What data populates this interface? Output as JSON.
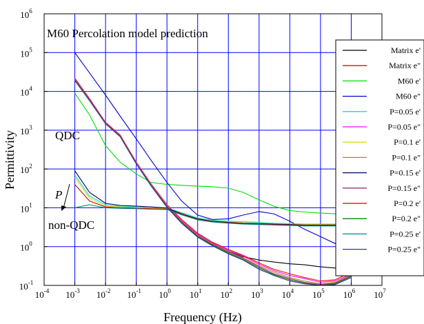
{
  "chart_data": {
    "type": "line",
    "title": "M60 Percolation model prediction",
    "xlabel": "Frequency (Hz)",
    "ylabel": "Permittivity",
    "x_scale": "log",
    "y_scale": "log",
    "xlim": [
      0.0001,
      10000000
    ],
    "ylim": [
      0.1,
      1000000
    ],
    "grid": true,
    "legend_position": "right",
    "x_ticks": [
      {
        "base": "10",
        "exp": "-4"
      },
      {
        "base": "10",
        "exp": "-3"
      },
      {
        "base": "10",
        "exp": "-2"
      },
      {
        "base": "10",
        "exp": "-1"
      },
      {
        "base": "10",
        "exp": "0"
      },
      {
        "base": "10",
        "exp": "1"
      },
      {
        "base": "10",
        "exp": "2"
      },
      {
        "base": "10",
        "exp": "3"
      },
      {
        "base": "10",
        "exp": "4"
      },
      {
        "base": "10",
        "exp": "5"
      },
      {
        "base": "10",
        "exp": "6"
      },
      {
        "base": "10",
        "exp": "7"
      }
    ],
    "y_ticks": [
      {
        "base": "10",
        "exp": "-1"
      },
      {
        "base": "10",
        "exp": "0"
      },
      {
        "base": "10",
        "exp": "1"
      },
      {
        "base": "10",
        "exp": "2"
      },
      {
        "base": "10",
        "exp": "3"
      },
      {
        "base": "10",
        "exp": "4"
      },
      {
        "base": "10",
        "exp": "5"
      },
      {
        "base": "10",
        "exp": "6"
      }
    ],
    "annotations": {
      "qdc": "QDC",
      "p": "P",
      "non_qdc": "non-QDC"
    },
    "x": [
      0.001,
      0.003,
      0.01,
      0.03,
      0.1,
      0.3,
      1,
      3,
      10,
      30,
      100,
      300,
      1000,
      3000,
      10000,
      30000,
      100000,
      300000,
      1000000
    ],
    "series": [
      {
        "name": "Matrix e'",
        "color": "#000000",
        "values": [
          20000,
          6000,
          1500,
          700,
          140,
          40,
          11,
          4.5,
          2.0,
          1.2,
          0.75,
          0.55,
          0.45,
          0.4,
          0.36,
          0.34,
          0.3,
          0.28,
          0.25
        ]
      },
      {
        "name": "Matrix e\"",
        "color": "#ff0000",
        "values": [
          22000,
          6500,
          1600,
          750,
          150,
          42,
          12,
          5.0,
          2.2,
          1.3,
          0.85,
          0.6,
          0.38,
          0.26,
          0.2,
          0.16,
          0.13,
          0.14,
          0.22
        ]
      },
      {
        "name": "M60 e'",
        "color": "#00dd00",
        "values": [
          9000,
          2500,
          400,
          150,
          75,
          45,
          40,
          38,
          36,
          35,
          32,
          25,
          16,
          11,
          8.5,
          7.8,
          7.3,
          7.0,
          6.8
        ]
      },
      {
        "name": "M60 e\"",
        "color": "#0000cc",
        "values": [
          100000,
          30000,
          8000,
          2300,
          600,
          170,
          45,
          15,
          6.5,
          5.0,
          5.2,
          6.5,
          8.0,
          7.0,
          4.5,
          2.8,
          1.8,
          1.2,
          0.9
        ]
      },
      {
        "name": "P=0.05 e'",
        "color": "#00dddd",
        "values": [
          70,
          20,
          12,
          11,
          10.8,
          10.5,
          10,
          7.5,
          5.5,
          4.8,
          4.5,
          4.4,
          4.2,
          4.0,
          3.9,
          3.8,
          3.8,
          3.8,
          3.8
        ]
      },
      {
        "name": "P=0.05 e\"",
        "color": "#ff00ff",
        "values": [
          21000,
          6200,
          1550,
          720,
          145,
          41,
          11.5,
          4.7,
          2.1,
          1.25,
          0.8,
          0.57,
          0.35,
          0.24,
          0.18,
          0.15,
          0.12,
          0.13,
          0.2
        ]
      },
      {
        "name": "P=0.1 e'",
        "color": "#dddd00",
        "values": [
          60,
          18,
          11,
          10.5,
          10.2,
          10,
          9.5,
          7.2,
          5.3,
          4.6,
          4.3,
          4.1,
          4.0,
          3.9,
          3.8,
          3.7,
          3.7,
          3.7,
          3.7
        ]
      },
      {
        "name": "P=0.1 e\"",
        "color": "#aa8833",
        "values": [
          20500,
          6100,
          1520,
          710,
          142,
          40,
          11.2,
          4.5,
          2.0,
          1.2,
          0.75,
          0.52,
          0.32,
          0.22,
          0.16,
          0.13,
          0.11,
          0.12,
          0.19
        ]
      },
      {
        "name": "P=0.15 e'",
        "color": "#000066",
        "values": [
          90,
          25,
          13,
          11.5,
          11,
          10.5,
          9.8,
          7.0,
          5.2,
          4.5,
          4.2,
          4.0,
          3.9,
          3.8,
          3.7,
          3.6,
          3.6,
          3.6,
          3.6
        ]
      },
      {
        "name": "P=0.15 e\"",
        "color": "#993366",
        "values": [
          20000,
          6000,
          1500,
          700,
          140,
          39,
          10.8,
          4.3,
          1.9,
          1.15,
          0.72,
          0.5,
          0.3,
          0.2,
          0.15,
          0.12,
          0.105,
          0.115,
          0.18
        ]
      },
      {
        "name": "P=0.2 e'",
        "color": "#cc0000",
        "values": [
          40,
          15,
          10.5,
          10,
          9.8,
          9.5,
          9.2,
          6.8,
          5.0,
          4.4,
          4.1,
          3.9,
          3.8,
          3.7,
          3.6,
          3.5,
          3.5,
          3.5,
          3.5
        ]
      },
      {
        "name": "P=0.2 e\"",
        "color": "#008800",
        "values": [
          19500,
          5900,
          1480,
          690,
          138,
          38,
          10.5,
          4.1,
          1.8,
          1.1,
          0.68,
          0.47,
          0.28,
          0.19,
          0.14,
          0.115,
          0.1,
          0.11,
          0.17
        ]
      },
      {
        "name": "P=0.25 e'",
        "color": "#008888",
        "values": [
          10,
          12,
          10,
          9.7,
          9.5,
          9.2,
          9.0,
          6.6,
          4.9,
          4.3,
          4.0,
          3.8,
          3.7,
          3.6,
          3.5,
          3.4,
          3.4,
          3.4,
          3.4
        ]
      },
      {
        "name": "P=0.25 e\"",
        "color": "#333399",
        "values": [
          19000,
          5800,
          1460,
          680,
          136,
          37,
          10.2,
          4.0,
          1.75,
          1.05,
          0.65,
          0.45,
          0.26,
          0.18,
          0.13,
          0.11,
          0.1,
          0.105,
          0.16
        ]
      }
    ]
  }
}
